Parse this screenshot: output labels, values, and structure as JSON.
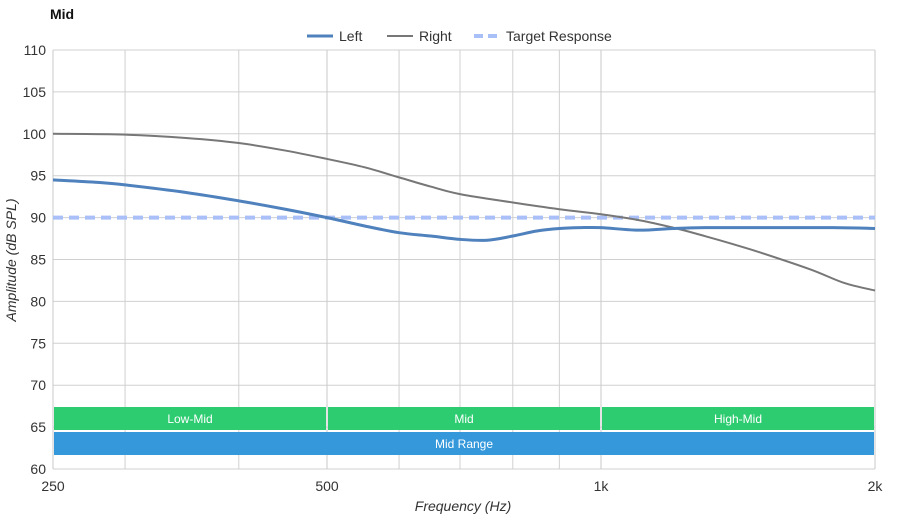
{
  "chart_data": {
    "type": "line",
    "title": "Mid",
    "xlabel": "Frequency (Hz)",
    "ylabel": "Amplitude (dB SPL)",
    "xscale": "log",
    "xlim": [
      250,
      2000
    ],
    "ylim": [
      60,
      110
    ],
    "grid": true,
    "legend_position": "top-center",
    "x_ticks": [
      {
        "value": 250,
        "label": "250"
      },
      {
        "value": 500,
        "label": "500"
      },
      {
        "value": 1000,
        "label": "1k"
      },
      {
        "value": 2000,
        "label": "2k"
      }
    ],
    "x_minor_gridlines": [
      300,
      400,
      600,
      700,
      800,
      900
    ],
    "y_ticks": [
      {
        "value": 60,
        "label": "60"
      },
      {
        "value": 65,
        "label": "65"
      },
      {
        "value": 70,
        "label": "70"
      },
      {
        "value": 75,
        "label": "75"
      },
      {
        "value": 80,
        "label": "80"
      },
      {
        "value": 85,
        "label": "85"
      },
      {
        "value": 90,
        "label": "90"
      },
      {
        "value": 95,
        "label": "95"
      },
      {
        "value": 100,
        "label": "100"
      },
      {
        "value": 105,
        "label": "105"
      },
      {
        "value": 110,
        "label": "110"
      }
    ],
    "series": [
      {
        "name": "Left",
        "color": "#4f81bd",
        "style": "solid",
        "points": [
          [
            250,
            94.5
          ],
          [
            280,
            94.2
          ],
          [
            300,
            93.9
          ],
          [
            350,
            93.0
          ],
          [
            400,
            92.0
          ],
          [
            450,
            91.0
          ],
          [
            500,
            90.0
          ],
          [
            550,
            89.0
          ],
          [
            600,
            88.2
          ],
          [
            650,
            87.8
          ],
          [
            700,
            87.4
          ],
          [
            750,
            87.3
          ],
          [
            800,
            87.8
          ],
          [
            850,
            88.4
          ],
          [
            900,
            88.7
          ],
          [
            950,
            88.8
          ],
          [
            1000,
            88.8
          ],
          [
            1100,
            88.5
          ],
          [
            1200,
            88.7
          ],
          [
            1300,
            88.8
          ],
          [
            1500,
            88.8
          ],
          [
            1800,
            88.8
          ],
          [
            2000,
            88.7
          ]
        ]
      },
      {
        "name": "Right",
        "color": "#777777",
        "style": "solid",
        "points": [
          [
            250,
            100.0
          ],
          [
            300,
            99.9
          ],
          [
            350,
            99.5
          ],
          [
            400,
            98.9
          ],
          [
            450,
            98.0
          ],
          [
            500,
            97.0
          ],
          [
            550,
            96.0
          ],
          [
            600,
            94.8
          ],
          [
            650,
            93.7
          ],
          [
            700,
            92.8
          ],
          [
            800,
            91.8
          ],
          [
            900,
            91.0
          ],
          [
            1000,
            90.4
          ],
          [
            1100,
            89.7
          ],
          [
            1200,
            88.8
          ],
          [
            1300,
            87.8
          ],
          [
            1400,
            86.8
          ],
          [
            1500,
            85.8
          ],
          [
            1700,
            83.8
          ],
          [
            1850,
            82.2
          ],
          [
            2000,
            81.3
          ]
        ]
      },
      {
        "name": "Target Response",
        "color": "#a9bff7",
        "style": "dashed",
        "points": [
          [
            250,
            90.0
          ],
          [
            2000,
            90.0
          ]
        ]
      }
    ],
    "bands": [
      {
        "label": "Low-Mid",
        "from": 250,
        "to": 500,
        "color": "#2ecc71",
        "row": 1
      },
      {
        "label": "Mid",
        "from": 500,
        "to": 1000,
        "color": "#2ecc71",
        "row": 1
      },
      {
        "label": "High-Mid",
        "from": 1000,
        "to": 2000,
        "color": "#2ecc71",
        "row": 1
      },
      {
        "label": "Mid Range",
        "from": 250,
        "to": 2000,
        "color": "#3498db",
        "row": 2
      }
    ]
  }
}
